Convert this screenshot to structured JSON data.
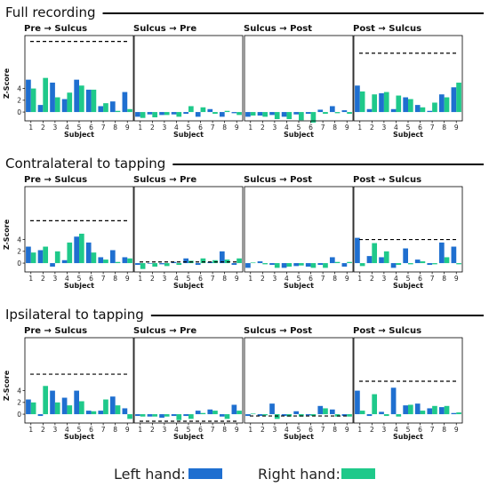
{
  "colors": {
    "left": "#1f6fd0",
    "right": "#1fc98a",
    "axis": "#000000",
    "threshold": "#000000"
  },
  "legend": {
    "left_label": "Left hand:",
    "right_label": "Right hand:"
  },
  "chart_data": {
    "type": "bar",
    "x": [
      "1",
      "2",
      "3",
      "4",
      "5",
      "6",
      "7",
      "8",
      "9"
    ],
    "xlabel": "Subject",
    "ylabel": "Z-Score",
    "yticks": [
      0,
      2,
      4
    ],
    "sections": [
      {
        "title": "Full recording",
        "panels": [
          {
            "title": "Pre → Sulcus",
            "threshold": 12.0,
            "series": [
              {
                "name": "Left hand",
                "values": [
                  5.5,
                  1.2,
                  5.0,
                  2.2,
                  5.5,
                  3.8,
                  1.0,
                  1.8,
                  3.4
                ]
              },
              {
                "name": "Right hand",
                "values": [
                  4.0,
                  5.8,
                  2.5,
                  3.3,
                  4.5,
                  3.8,
                  1.5,
                  0.2,
                  0.5
                ]
              }
            ]
          },
          {
            "title": "Sulcus → Pre",
            "threshold": null,
            "series": [
              {
                "name": "Left hand",
                "values": [
                  -0.8,
                  -0.4,
                  -0.5,
                  -0.4,
                  -0.3,
                  -0.8,
                  0.5,
                  -0.8,
                  -0.2
                ]
              },
              {
                "name": "Right hand",
                "values": [
                  -1.0,
                  -0.9,
                  -0.5,
                  -0.8,
                  1.0,
                  0.8,
                  -0.3,
                  0.2,
                  -0.5
                ]
              }
            ]
          },
          {
            "title": "Sulcus → Post",
            "threshold": null,
            "series": [
              {
                "name": "Left hand",
                "values": [
                  -0.8,
                  -0.6,
                  -0.5,
                  -0.8,
                  -0.4,
                  -0.3,
                  0.4,
                  1.0,
                  0.3
                ]
              },
              {
                "name": "Right hand",
                "values": [
                  -0.6,
                  -0.8,
                  -1.2,
                  -1.2,
                  -1.4,
                  -1.8,
                  -0.3,
                  -0.2,
                  -0.3
                ]
              }
            ]
          },
          {
            "title": "Post → Sulcus",
            "threshold": 10.0,
            "series": [
              {
                "name": "Left hand",
                "values": [
                  4.5,
                  0.5,
                  3.2,
                  0.5,
                  2.5,
                  1.2,
                  0.2,
                  3.0,
                  4.2
                ]
              },
              {
                "name": "Right hand",
                "values": [
                  3.5,
                  3.0,
                  3.4,
                  2.8,
                  2.2,
                  0.8,
                  1.6,
                  2.5,
                  5.0
                ]
              }
            ]
          }
        ]
      },
      {
        "title": "Contralateral to tapping",
        "panels": [
          {
            "title": "Pre → Sulcus",
            "threshold": 7.2,
            "series": [
              {
                "name": "Left hand",
                "values": [
                  2.8,
                  2.2,
                  -0.6,
                  0.5,
                  4.5,
                  3.5,
                  1.0,
                  2.2,
                  1.0
                ]
              },
              {
                "name": "Right hand",
                "values": [
                  1.8,
                  2.8,
                  2.0,
                  3.5,
                  5.0,
                  1.8,
                  0.6,
                  0.2,
                  0.8
                ]
              }
            ]
          },
          {
            "title": "Sulcus → Pre",
            "threshold": 0.2,
            "series": [
              {
                "name": "Left hand",
                "values": [
                  -0.3,
                  -0.1,
                  -0.2,
                  0.2,
                  0.8,
                  -0.3,
                  0.2,
                  2.0,
                  -0.3
                ]
              },
              {
                "name": "Right hand",
                "values": [
                  -1.0,
                  -0.6,
                  -0.5,
                  -0.3,
                  0.4,
                  0.8,
                  0.5,
                  0.6,
                  0.8
                ]
              }
            ]
          },
          {
            "title": "Sulcus → Post",
            "threshold": null,
            "series": [
              {
                "name": "Left hand",
                "values": [
                  -0.8,
                  0.3,
                  -0.3,
                  -0.8,
                  -0.5,
                  -0.6,
                  -0.3,
                  1.0,
                  -0.6
                ]
              },
              {
                "name": "Right hand",
                "values": [
                  0.1,
                  -0.2,
                  -0.8,
                  -0.6,
                  -0.4,
                  -0.8,
                  -0.8,
                  0.2,
                  0.2
                ]
              }
            ]
          },
          {
            "title": "Post → Sulcus",
            "threshold": 4.0,
            "series": [
              {
                "name": "Left hand",
                "values": [
                  4.3,
                  1.2,
                  1.0,
                  -0.8,
                  2.5,
                  0.6,
                  -0.3,
                  3.5,
                  2.8
                ]
              },
              {
                "name": "Right hand",
                "values": [
                  -0.5,
                  3.4,
                  2.0,
                  -0.3,
                  -0.2,
                  0.3,
                  -0.2,
                  1.0,
                  -0.2
                ]
              }
            ]
          }
        ]
      },
      {
        "title": "Ipsilateral to tapping",
        "panels": [
          {
            "title": "Pre → Sulcus",
            "threshold": 6.8,
            "series": [
              {
                "name": "Left hand",
                "values": [
                  2.5,
                  -0.3,
                  4.0,
                  2.8,
                  4.0,
                  0.6,
                  0.6,
                  3.0,
                  1.0
                ]
              },
              {
                "name": "Right hand",
                "values": [
                  2.0,
                  4.8,
                  2.0,
                  1.5,
                  2.2,
                  0.5,
                  2.5,
                  1.5,
                  -0.8
                ]
              }
            ]
          },
          {
            "title": "Sulcus → Pre",
            "threshold": -1.2,
            "series": [
              {
                "name": "Left hand",
                "values": [
                  -0.3,
                  -0.4,
                  -0.6,
                  -0.3,
                  -0.3,
                  0.6,
                  0.8,
                  -0.4,
                  1.6
                ]
              },
              {
                "name": "Right hand",
                "values": [
                  -0.4,
                  -0.4,
                  -0.4,
                  -1.0,
                  -0.8,
                  0.2,
                  0.6,
                  -0.8,
                  0.6
                ]
              }
            ]
          },
          {
            "title": "Sulcus → Post",
            "threshold": -0.3,
            "series": [
              {
                "name": "Left hand",
                "values": [
                  -0.3,
                  -0.3,
                  1.8,
                  -0.3,
                  0.5,
                  -0.2,
                  1.4,
                  0.8,
                  -0.3
                ]
              },
              {
                "name": "Right hand",
                "values": [
                  0.1,
                  -0.2,
                  -0.8,
                  -0.4,
                  -0.4,
                  -0.3,
                  1.0,
                  -0.4,
                  -0.4
                ]
              }
            ]
          },
          {
            "title": "Post → Sulcus",
            "threshold": 5.6,
            "series": [
              {
                "name": "Left hand",
                "values": [
                  4.0,
                  -0.3,
                  0.4,
                  4.5,
                  1.5,
                  1.8,
                  1.0,
                  1.2,
                  0.2
                ]
              },
              {
                "name": "Right hand",
                "values": [
                  0.6,
                  3.4,
                  -0.3,
                  -0.4,
                  1.6,
                  0.6,
                  1.4,
                  1.4,
                  0.3
                ]
              }
            ]
          }
        ]
      }
    ]
  }
}
